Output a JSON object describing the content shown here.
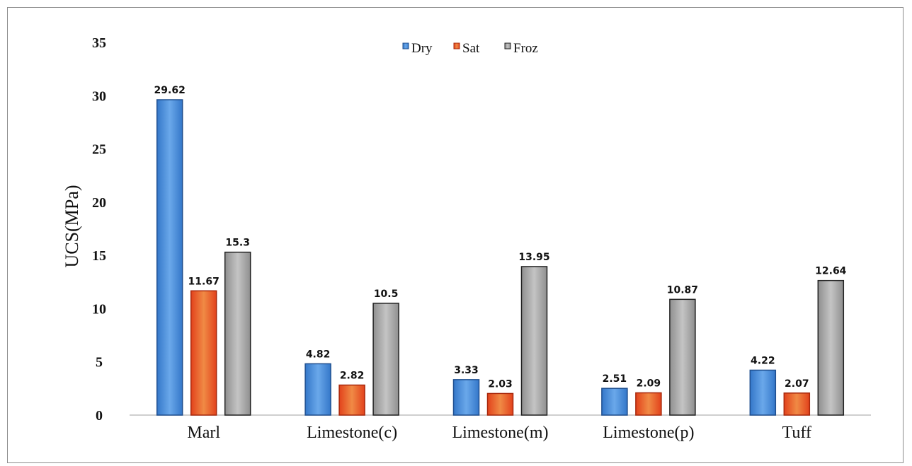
{
  "chart_data": {
    "type": "bar",
    "title": "",
    "xlabel": "",
    "ylabel": "UCS(MPa)",
    "ylim": [
      0,
      35
    ],
    "yticks": [
      0,
      5,
      10,
      15,
      20,
      25,
      30,
      35
    ],
    "categories": [
      "Marl",
      "Limestone(c)",
      "Limestone(m)",
      "Limestone(p)",
      "Tuff"
    ],
    "series": [
      {
        "name": "Dry",
        "color": "#3d85d6",
        "values": [
          29.62,
          4.82,
          3.33,
          2.51,
          4.22
        ]
      },
      {
        "name": "Sat",
        "color": "#e8491f",
        "values": [
          11.67,
          2.82,
          2.03,
          2.09,
          2.07
        ]
      },
      {
        "name": "Froz",
        "color": "#a3a3a3",
        "values": [
          15.3,
          10.5,
          13.95,
          10.87,
          12.64
        ]
      }
    ],
    "value_labels": [
      [
        "29.62",
        "11.67",
        "15.3"
      ],
      [
        "4.82",
        "2.82",
        "10.5"
      ],
      [
        "3.33",
        "2.03",
        "13.95"
      ],
      [
        "2.51",
        "2.09",
        "10.87"
      ],
      [
        "4.22",
        "2.07",
        "12.64"
      ]
    ],
    "legend": "top-center",
    "grid": false
  }
}
